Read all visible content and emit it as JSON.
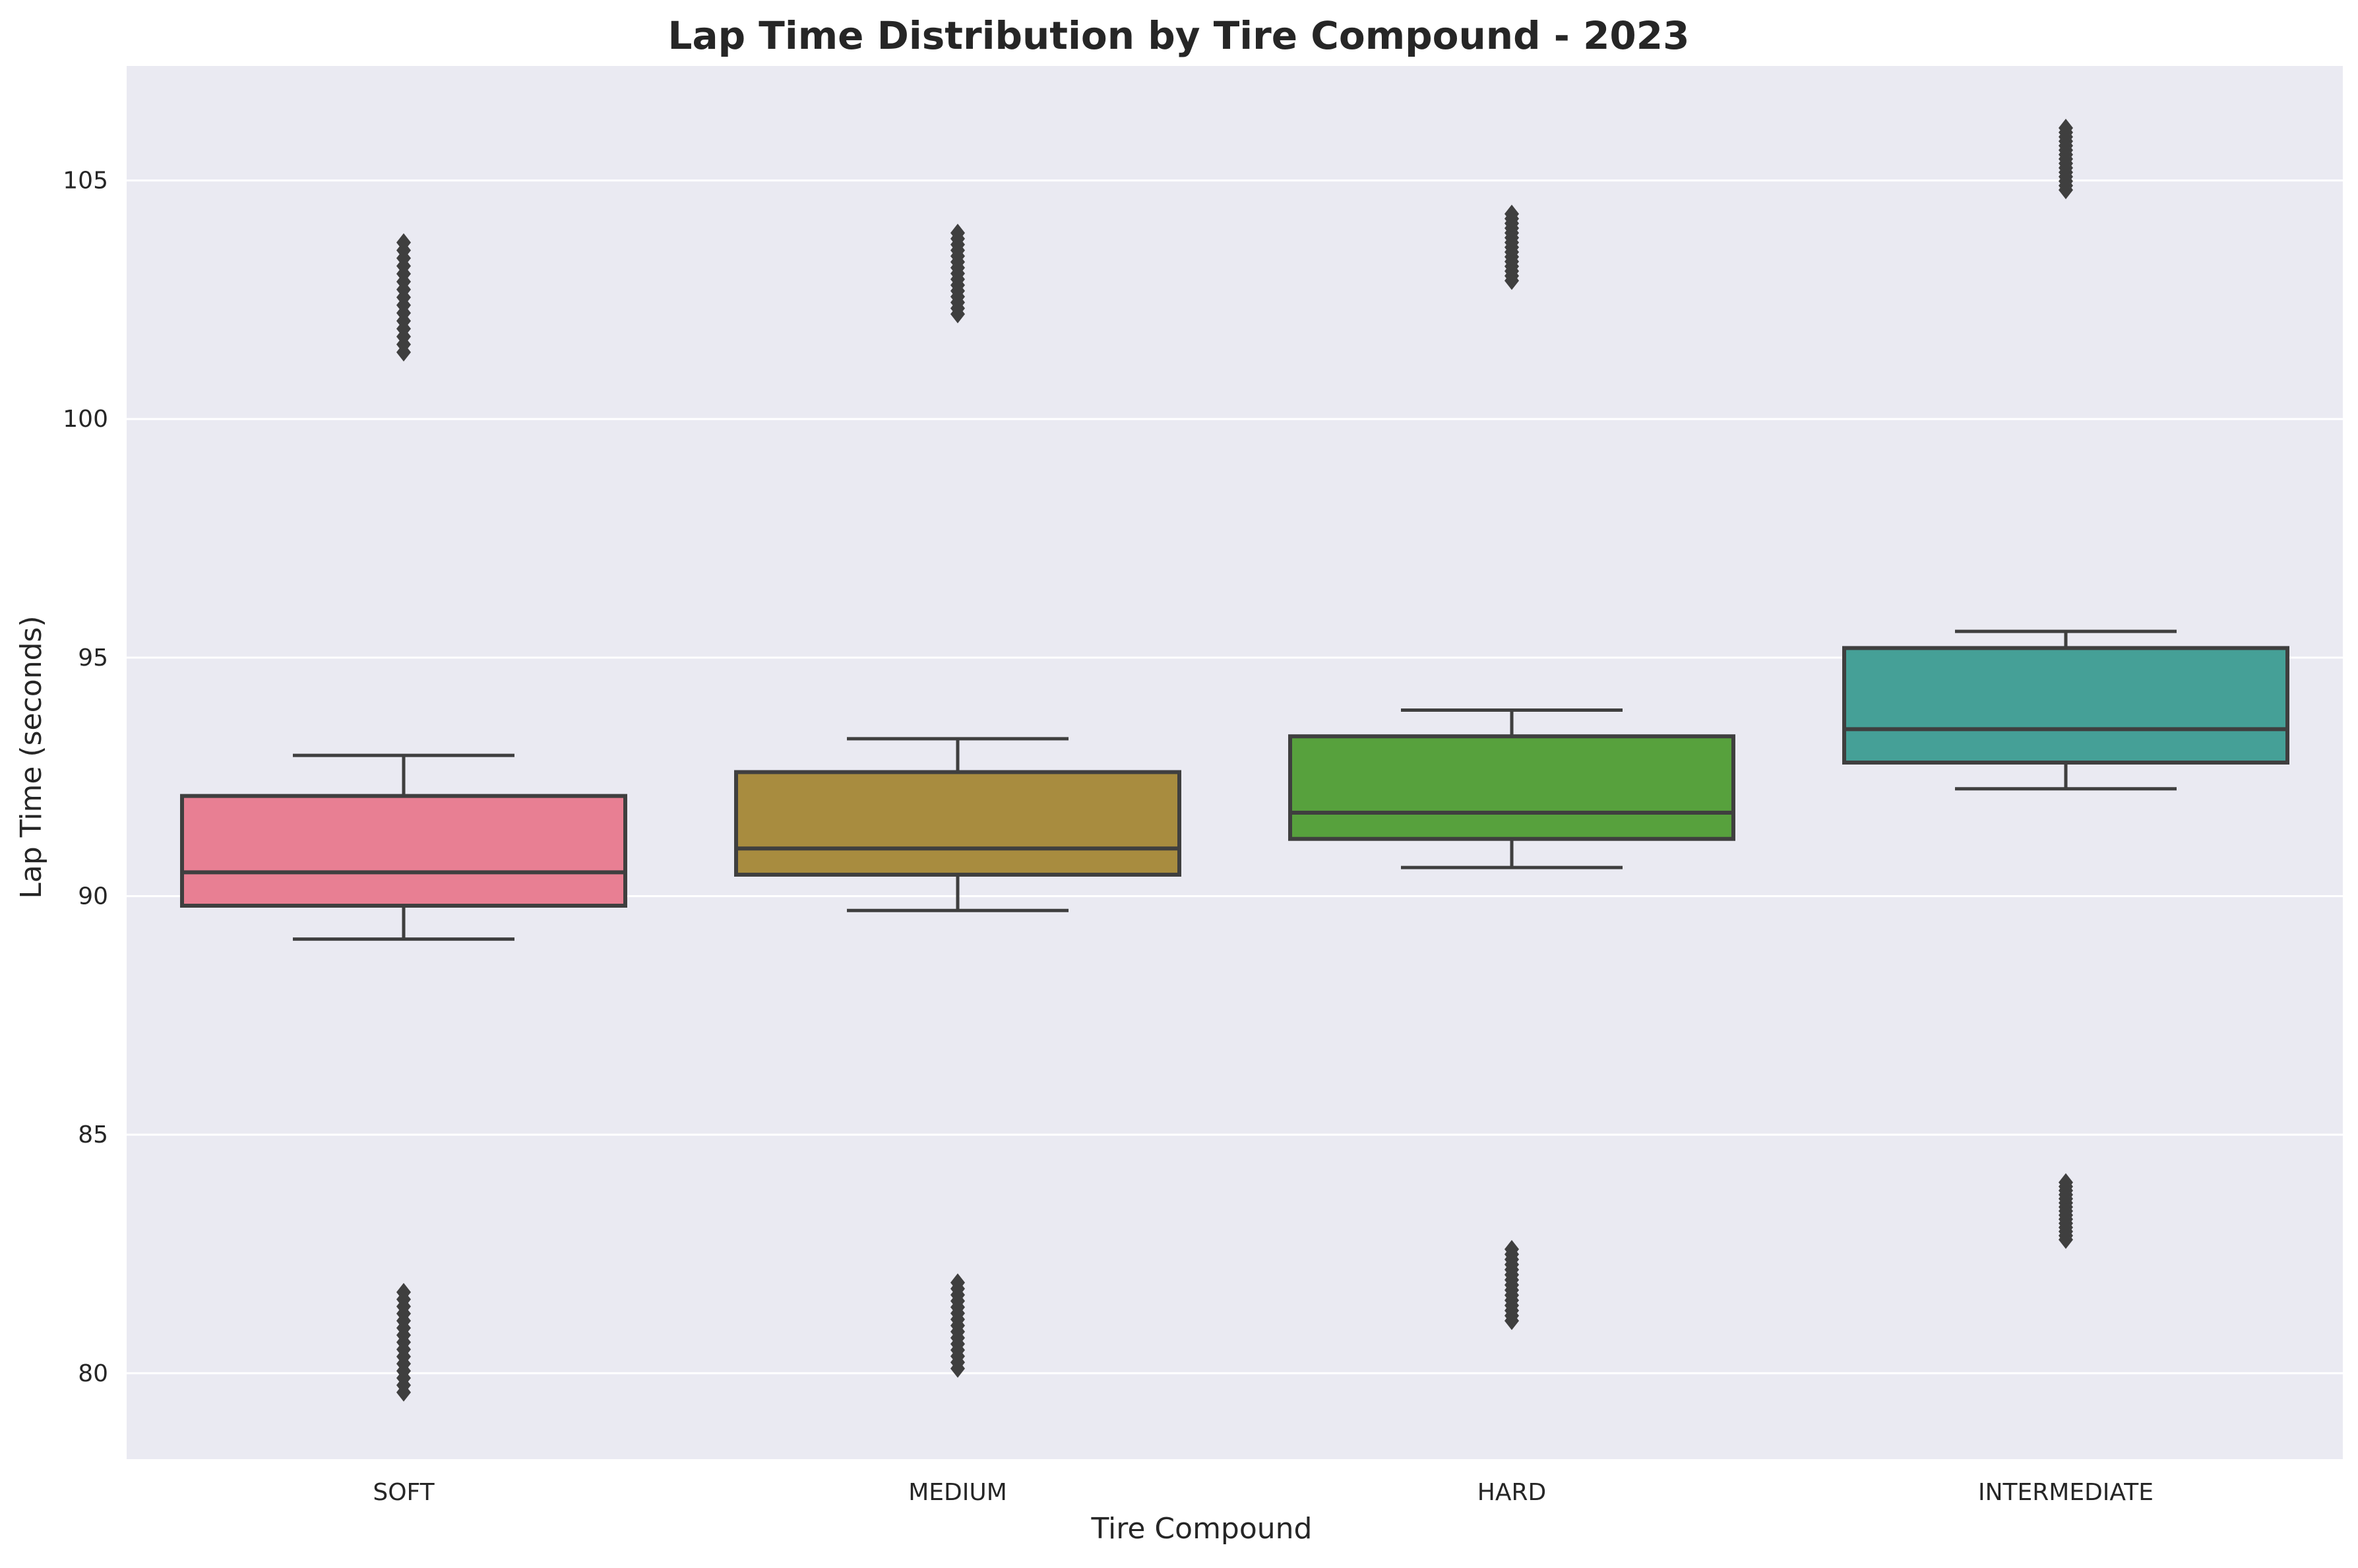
{
  "chart_data": {
    "type": "box",
    "title": "Lap Time Distribution by Tire Compound - 2023",
    "xlabel": "Tire Compound",
    "ylabel": "Lap Time (seconds)",
    "ylim": [
      78.2,
      107.4
    ],
    "yticks": [
      80,
      85,
      90,
      95,
      100,
      105
    ],
    "grid": true,
    "background": "#eaeaf2",
    "edge_color": "#3f3f3f",
    "categories": [
      "SOFT",
      "MEDIUM",
      "HARD",
      "INTERMEDIATE"
    ],
    "boxes": [
      {
        "category": "SOFT",
        "color": "#e87f93",
        "whisker_low": 89.1,
        "q1": 89.8,
        "median": 90.5,
        "q3": 92.1,
        "whisker_high": 92.95,
        "outliers_low_range": [
          79.6,
          81.7
        ],
        "outliers_high_range": [
          101.4,
          103.7
        ]
      },
      {
        "category": "MEDIUM",
        "color": "#a88c3f",
        "whisker_low": 89.7,
        "q1": 90.45,
        "median": 91.0,
        "q3": 92.6,
        "whisker_high": 93.3,
        "outliers_low_range": [
          80.1,
          81.9
        ],
        "outliers_high_range": [
          102.2,
          103.9
        ]
      },
      {
        "category": "HARD",
        "color": "#57a13d",
        "whisker_low": 90.6,
        "q1": 91.2,
        "median": 91.75,
        "q3": 93.35,
        "whisker_high": 93.9,
        "outliers_low_range": [
          81.1,
          82.6
        ],
        "outliers_high_range": [
          102.9,
          104.3
        ]
      },
      {
        "category": "INTERMEDIATE",
        "color": "#45a097",
        "whisker_low": 92.25,
        "q1": 92.8,
        "median": 93.5,
        "q3": 95.2,
        "whisker_high": 95.55,
        "outliers_low_range": [
          82.8,
          84.0
        ],
        "outliers_high_range": [
          104.8,
          106.1
        ]
      }
    ]
  }
}
